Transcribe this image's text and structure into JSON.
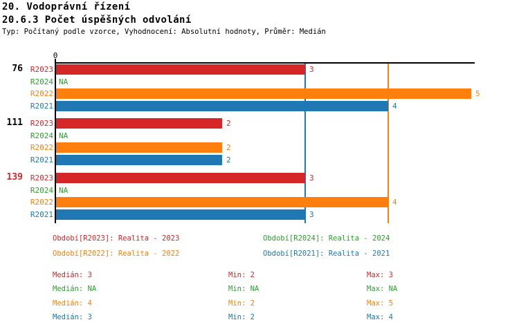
{
  "header": {
    "title1": "20. Vodoprávní řízení",
    "title2": "20.6.3 Počet úspěšných odvolání",
    "meta": "Typ: Počítaný podle vzorce, Vyhodnocení: Absolutní hodnoty, Průměr: Medián"
  },
  "colors": {
    "R2023": "#d62728",
    "R2024": "#2ca02c",
    "R2022": "#ff7f0e",
    "R2021": "#1f77b4",
    "axis": "#000000"
  },
  "chart_data": {
    "type": "bar",
    "orientation": "horizontal",
    "title": "20.6.3 Počet úspěšných odvolání",
    "x_axis": {
      "tick_label": "0",
      "range": [
        0,
        5
      ],
      "position": "top",
      "grid": false
    },
    "series_order": [
      "R2023",
      "R2024",
      "R2022",
      "R2021"
    ],
    "groups": [
      {
        "label": "76",
        "label_color": "#000000",
        "rows": [
          {
            "series": "R2023",
            "value": 3,
            "display": "3"
          },
          {
            "series": "R2024",
            "value": null,
            "display": "NA"
          },
          {
            "series": "R2022",
            "value": 5,
            "display": "5"
          },
          {
            "series": "R2021",
            "value": 4,
            "display": "4"
          }
        ]
      },
      {
        "label": "111",
        "label_color": "#000000",
        "rows": [
          {
            "series": "R2023",
            "value": 2,
            "display": "2"
          },
          {
            "series": "R2024",
            "value": null,
            "display": "NA"
          },
          {
            "series": "R2022",
            "value": 2,
            "display": "2"
          },
          {
            "series": "R2021",
            "value": 2,
            "display": "2"
          }
        ]
      },
      {
        "label": "139",
        "label_color": "#d62728",
        "rows": [
          {
            "series": "R2023",
            "value": 3,
            "display": "3"
          },
          {
            "series": "R2024",
            "value": null,
            "display": "NA"
          },
          {
            "series": "R2022",
            "value": 4,
            "display": "4"
          },
          {
            "series": "R2021",
            "value": 3,
            "display": "3"
          }
        ]
      }
    ],
    "median_lines": [
      {
        "series": "R2022",
        "value": 4
      },
      {
        "series": "R2021",
        "value": 3
      }
    ]
  },
  "legend": {
    "items": [
      {
        "series": "R2023",
        "label": "Období[R2023]: Realita - 2023"
      },
      {
        "series": "R2024",
        "label": "Období[R2024]: Realita - 2024"
      },
      {
        "series": "R2022",
        "label": "Období[R2022]: Realita - 2022"
      },
      {
        "series": "R2021",
        "label": "Období[R2021]: Realita - 2021"
      }
    ]
  },
  "stats": {
    "rows": [
      {
        "series": "R2023",
        "median": "Medián: 3",
        "min": "Min: 2",
        "max": "Max: 3"
      },
      {
        "series": "R2024",
        "median": "Medián: NA",
        "min": "Min: NA",
        "max": "Max: NA"
      },
      {
        "series": "R2022",
        "median": "Medián: 4",
        "min": "Min: 2",
        "max": "Max: 5"
      },
      {
        "series": "R2021",
        "median": "Medián: 3",
        "min": "Min: 2",
        "max": "Max: 4"
      }
    ]
  }
}
